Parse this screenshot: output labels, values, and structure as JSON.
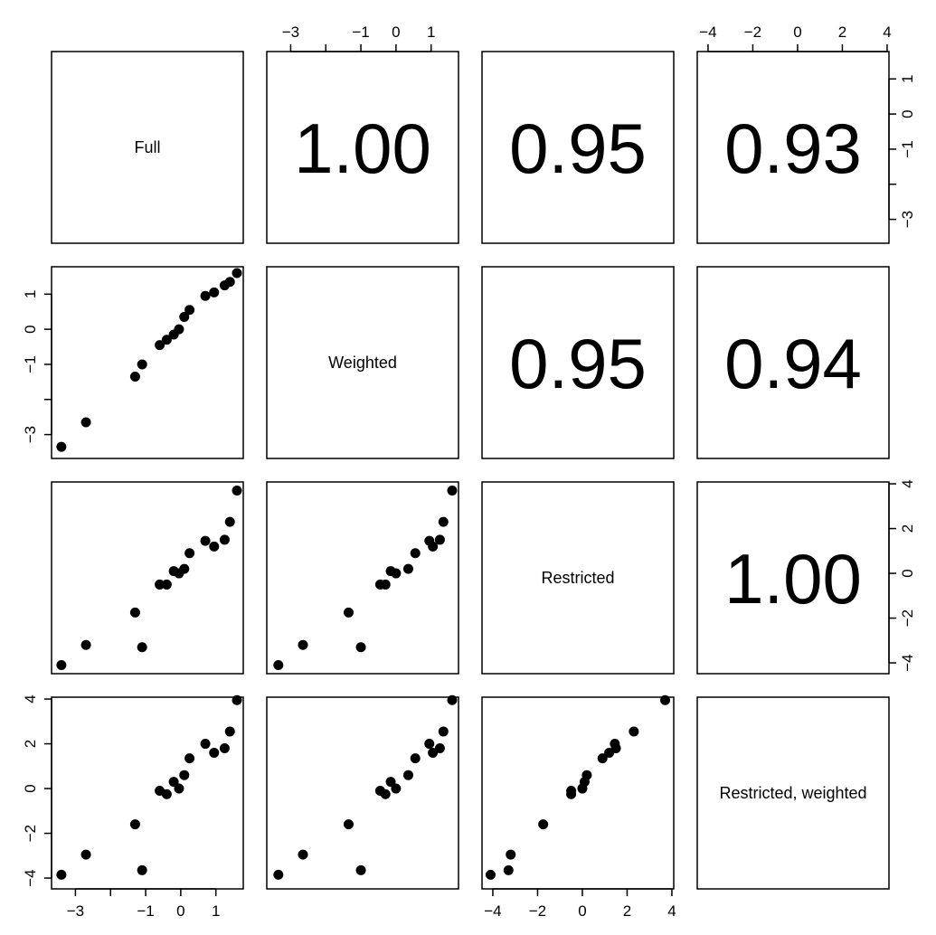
{
  "chart_data": {
    "type": "scatter",
    "subtype": "pairs-matrix",
    "title": "",
    "variables": [
      "Full",
      "Weighted",
      "Restricted",
      "Restricted, weighted"
    ],
    "correlations": [
      {
        "row": 0,
        "col": 1,
        "label": "1.00"
      },
      {
        "row": 0,
        "col": 2,
        "label": "0.95"
      },
      {
        "row": 0,
        "col": 3,
        "label": "0.93"
      },
      {
        "row": 1,
        "col": 2,
        "label": "0.95"
      },
      {
        "row": 1,
        "col": 3,
        "label": "0.94"
      },
      {
        "row": 2,
        "col": 3,
        "label": "1.00"
      }
    ],
    "axes": [
      {
        "range": [
          -3.5,
          1.6
        ],
        "ticks": [
          -3,
          -2,
          -1,
          0,
          1
        ],
        "tick_labels": [
          "−3",
          "",
          "−1",
          "0",
          "1"
        ]
      },
      {
        "range": [
          -3.5,
          1.6
        ],
        "ticks": [
          -3,
          -2,
          -1,
          0,
          1
        ],
        "tick_labels": [
          "−3",
          "",
          "−1",
          "0",
          "1"
        ]
      },
      {
        "range": [
          -4.2,
          3.8
        ],
        "ticks": [
          -4,
          -2,
          0,
          2,
          4
        ],
        "tick_labels": [
          "−4",
          "−2",
          "0",
          "2",
          "4"
        ]
      },
      {
        "range": [
          -4.2,
          3.8
        ],
        "ticks": [
          -4,
          -2,
          0,
          2,
          4
        ],
        "tick_labels": [
          "−4",
          "−2",
          "0",
          "2",
          "4"
        ]
      }
    ],
    "points": {
      "full": [
        -3.4,
        -2.7,
        -1.3,
        -1.1,
        -0.6,
        -0.4,
        -0.2,
        -0.05,
        0.1,
        0.25,
        0.7,
        0.95,
        1.25,
        1.4,
        1.6
      ],
      "weighted": [
        -3.35,
        -2.65,
        -1.35,
        -1.0,
        -0.45,
        -0.3,
        -0.15,
        0.0,
        0.35,
        0.55,
        0.95,
        1.05,
        1.25,
        1.35,
        1.6
      ],
      "restricted": [
        -4.1,
        -3.2,
        -1.75,
        -3.3,
        -0.5,
        -0.5,
        0.1,
        0.0,
        0.2,
        0.9,
        1.45,
        1.2,
        1.5,
        2.3,
        3.7
      ],
      "restricted_weighted": [
        -3.85,
        -2.95,
        -1.6,
        -3.65,
        -0.1,
        -0.25,
        0.3,
        0.0,
        0.6,
        1.35,
        2.0,
        1.6,
        1.8,
        2.55,
        3.95
      ]
    }
  }
}
